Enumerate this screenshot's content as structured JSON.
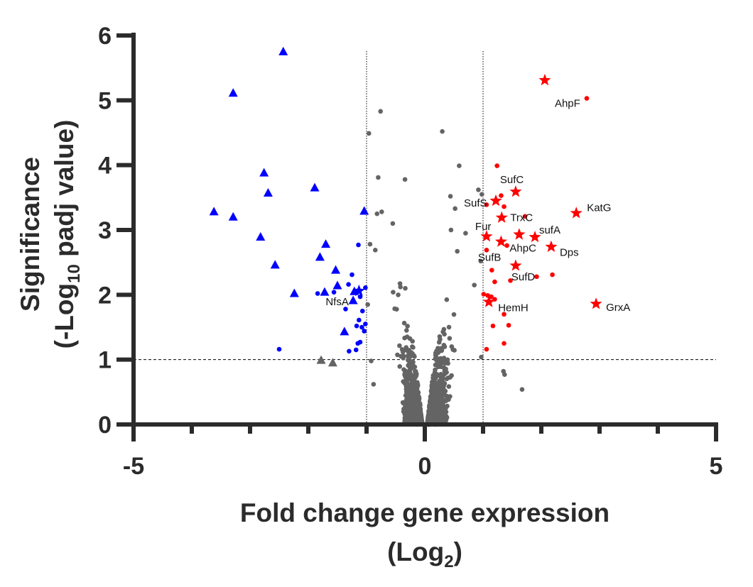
{
  "chart_data": {
    "type": "scatter",
    "subtype": "volcano",
    "xlabel": "Fold change gene expression",
    "xlabel_unit": "(Log",
    "xlabel_unit_sub": "2",
    "xlabel_unit_end": ")",
    "ylabel_line1": "Significance",
    "ylabel_line2_pre": "(-Log",
    "ylabel_line2_sub": "10",
    "ylabel_line2_post": " padj value)",
    "xlim": [
      -5,
      5
    ],
    "ylim": [
      0,
      6
    ],
    "x_ticks": [
      -5,
      0,
      5
    ],
    "x_minor_ticks": [
      -4,
      -3,
      -2,
      -1,
      1,
      2,
      3,
      4
    ],
    "y_ticks": [
      0,
      1,
      2,
      3,
      4,
      5,
      6
    ],
    "x_tick_labels": [
      "-5",
      "0",
      "5"
    ],
    "y_tick_labels": [
      "0",
      "1",
      "2",
      "3",
      "4",
      "5",
      "6"
    ],
    "thresholds": {
      "y": 1,
      "x": [
        -1,
        1
      ]
    },
    "colors": {
      "up": "#ff0000",
      "down": "#0000ff",
      "ns": "#646464",
      "axis": "#2b2b2b"
    },
    "series": [
      {
        "name": "up-regulated labelled",
        "marker": "star",
        "color": "#ff0000",
        "points": [
          {
            "x": 2.06,
            "y": 5.31
          },
          {
            "x": 1.56,
            "y": 3.59,
            "label": "SufC"
          },
          {
            "x": 1.22,
            "y": 3.45,
            "label": "SufS"
          },
          {
            "x": 1.32,
            "y": 3.19,
            "label": "TrxC"
          },
          {
            "x": 2.6,
            "y": 3.26,
            "label": "KatG"
          },
          {
            "x": 1.06,
            "y": 2.9,
            "label": "Fur"
          },
          {
            "x": 1.62,
            "y": 2.93
          },
          {
            "x": 1.89,
            "y": 2.89,
            "label": "sufA"
          },
          {
            "x": 1.31,
            "y": 2.82,
            "label": "AhpC"
          },
          {
            "x": 2.17,
            "y": 2.74,
            "label": "Dps"
          },
          {
            "x": 1.56,
            "y": 2.45,
            "label": "SufD"
          },
          {
            "x": 1.1,
            "y": 1.89,
            "label": "HemH"
          },
          {
            "x": 2.94,
            "y": 1.86,
            "label": "GrxA"
          }
        ]
      },
      {
        "name": "up-regulated",
        "marker": "circle",
        "color": "#ff0000",
        "points": [
          {
            "x": 2.78,
            "y": 5.03,
            "label": "AhpF"
          },
          {
            "x": 1.24,
            "y": 3.99
          },
          {
            "x": 1.31,
            "y": 3.53
          },
          {
            "x": 1.36,
            "y": 3.36
          },
          {
            "x": 1.06,
            "y": 3.39
          },
          {
            "x": 1.72,
            "y": 3.21
          },
          {
            "x": 1.41,
            "y": 2.76
          },
          {
            "x": 1.06,
            "y": 2.69,
            "label": "SufB"
          },
          {
            "x": 1.15,
            "y": 2.38
          },
          {
            "x": 1.2,
            "y": 2.2
          },
          {
            "x": 1.47,
            "y": 2.22
          },
          {
            "x": 1.92,
            "y": 2.28
          },
          {
            "x": 2.19,
            "y": 2.31
          },
          {
            "x": 1.01,
            "y": 2.01
          },
          {
            "x": 1.08,
            "y": 1.99
          },
          {
            "x": 1.14,
            "y": 1.97
          },
          {
            "x": 1.2,
            "y": 1.93
          },
          {
            "x": 1.36,
            "y": 1.7
          },
          {
            "x": 1.17,
            "y": 1.52
          },
          {
            "x": 1.44,
            "y": 1.53
          },
          {
            "x": 1.36,
            "y": 1.25
          },
          {
            "x": 1.06,
            "y": 1.16
          }
        ]
      },
      {
        "name": "down-regulated triangles",
        "marker": "triangle",
        "color": "#0000ff",
        "points": [
          {
            "x": -2.43,
            "y": 5.75
          },
          {
            "x": -3.29,
            "y": 5.11
          },
          {
            "x": -2.76,
            "y": 3.88
          },
          {
            "x": -2.69,
            "y": 3.57
          },
          {
            "x": -1.89,
            "y": 3.65
          },
          {
            "x": -3.62,
            "y": 3.28
          },
          {
            "x": -3.29,
            "y": 3.2
          },
          {
            "x": -1.04,
            "y": 3.29
          },
          {
            "x": -2.82,
            "y": 2.89
          },
          {
            "x": -1.7,
            "y": 2.78
          },
          {
            "x": -1.8,
            "y": 2.58
          },
          {
            "x": -2.57,
            "y": 2.46
          },
          {
            "x": -1.53,
            "y": 2.38
          },
          {
            "x": -1.5,
            "y": 2.14
          },
          {
            "x": -2.24,
            "y": 2.02
          },
          {
            "x": -1.72,
            "y": 2.04
          },
          {
            "x": -1.21,
            "y": 2.05
          },
          {
            "x": -1.23,
            "y": 1.91
          },
          {
            "x": -1.38,
            "y": 1.43
          }
        ]
      },
      {
        "name": "down-regulated labelled",
        "marker": "star",
        "color": "#0000ff",
        "points": [
          {
            "x": -1.13,
            "y": 2.06,
            "label": "NfsA"
          }
        ]
      },
      {
        "name": "down-regulated",
        "marker": "circle",
        "color": "#0000ff",
        "points": [
          {
            "x": -1.14,
            "y": 2.77
          },
          {
            "x": -1.25,
            "y": 2.31
          },
          {
            "x": -1.31,
            "y": 2.16
          },
          {
            "x": -1.84,
            "y": 2.02
          },
          {
            "x": -1.56,
            "y": 2.04
          },
          {
            "x": -1.02,
            "y": 2.11
          },
          {
            "x": -1.11,
            "y": 1.97
          },
          {
            "x": -1.36,
            "y": 1.78
          },
          {
            "x": -1.07,
            "y": 1.75
          },
          {
            "x": -1.13,
            "y": 1.61
          },
          {
            "x": -1.17,
            "y": 1.52
          },
          {
            "x": -1.08,
            "y": 1.5
          },
          {
            "x": -1.02,
            "y": 1.55
          },
          {
            "x": -1.04,
            "y": 1.44
          },
          {
            "x": -1.11,
            "y": 1.27
          },
          {
            "x": -1.15,
            "y": 1.25
          },
          {
            "x": -1.18,
            "y": 1.15
          },
          {
            "x": -1.3,
            "y": 1.13
          },
          {
            "x": -2.5,
            "y": 1.16
          }
        ]
      },
      {
        "name": "not significant triangles",
        "marker": "triangle",
        "color": "#646464",
        "points": [
          {
            "x": -1.78,
            "y": 0.99
          },
          {
            "x": -1.58,
            "y": 0.95
          }
        ]
      },
      {
        "name": "not significant",
        "marker": "circle",
        "color": "#646464",
        "points": [
          {
            "x": -0.76,
            "y": 4.83
          },
          {
            "x": -0.96,
            "y": 4.49
          },
          {
            "x": 0.3,
            "y": 4.52
          },
          {
            "x": -0.8,
            "y": 3.81
          },
          {
            "x": -0.34,
            "y": 3.78
          },
          {
            "x": 0.59,
            "y": 3.99
          },
          {
            "x": 1.67,
            "y": 0.54
          },
          {
            "x": 1.37,
            "y": 0.77
          },
          {
            "x": -0.74,
            "y": 3.28
          },
          {
            "x": -0.82,
            "y": 3.25
          },
          {
            "x": -0.94,
            "y": 2.78
          },
          {
            "x": -0.85,
            "y": 2.69
          },
          {
            "x": 0.92,
            "y": 3.62
          },
          {
            "x": 0.98,
            "y": 3.55
          },
          {
            "x": 0.44,
            "y": 3.52
          },
          {
            "x": 0.52,
            "y": 3.33
          },
          {
            "x": 0.96,
            "y": 2.52
          },
          {
            "x": -0.98,
            "y": 1.85
          },
          {
            "x": -0.92,
            "y": 0.98
          },
          {
            "x": -0.88,
            "y": 0.62
          },
          {
            "x": 0.97,
            "y": 1.04
          },
          {
            "x": 1.35,
            "y": 0.82
          },
          {
            "x": 0.85,
            "y": 2.15
          },
          {
            "x": -0.55,
            "y": 3.1
          },
          {
            "x": 0.7,
            "y": 2.95
          }
        ],
        "bulk_cloud": {
          "count": 1400,
          "seed": 7
        }
      }
    ]
  }
}
